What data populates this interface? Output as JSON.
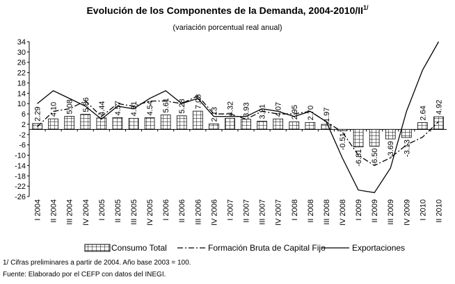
{
  "chart_data": {
    "type": "bar-line",
    "title": "Evolución de los Componentes de la Demanda, 2004-2010/II",
    "title_sup": "1/",
    "subtitle": "(variación porcentual real anual)",
    "categories": [
      "I 2004",
      "II 2004",
      "III 2004",
      "IV 2004",
      "I 2005",
      "II 2005",
      "III 2005",
      "IV 2005",
      "I 2006",
      "II 2006",
      "III 2006",
      "IV 2006",
      "I 2007",
      "II 2007",
      "III 2007",
      "IV 2007",
      "I 2008",
      "II 2008",
      "III 2008",
      "IV 2008",
      "I 2009",
      "II 2009",
      "III 2009",
      "IV 2009",
      "I 2010",
      "II 2010"
    ],
    "series": [
      {
        "name": "Consumo Total",
        "type": "bar",
        "color": "#000000",
        "values": [
          2.29,
          4.1,
          5.08,
          5.86,
          4.44,
          4.57,
          4.31,
          4.54,
          5.61,
          5.28,
          7.08,
          2.13,
          4.32,
          3.93,
          3.21,
          4.07,
          2.95,
          2.7,
          1.97,
          -0.51,
          -6.81,
          -6.5,
          -3.69,
          -3.13,
          2.64,
          4.92
        ],
        "value_labels": [
          "2.29",
          "4.10",
          "5.08",
          "5.86",
          "4.44",
          "4.57",
          "4.31",
          "4.54",
          "5.61",
          "5.28",
          "7.08",
          "2.13",
          "4.32",
          "3.93",
          "3.21",
          "4.07",
          "2.95",
          "2.70",
          "1.97",
          "-0.51",
          "-6.81",
          "-6.50",
          "-3.69",
          "-3.13",
          "2.64",
          "4.92"
        ]
      },
      {
        "name": "Formación Bruta de Capital Fijo",
        "type": "line",
        "dash": "dashdot",
        "color": "#000000",
        "values": [
          1,
          7,
          8,
          11,
          5,
          10,
          9,
          11,
          11,
          10,
          13,
          6,
          6,
          4,
          7,
          6,
          6,
          7,
          3,
          -1,
          -10,
          -14,
          -11,
          -6,
          -3,
          3
        ]
      },
      {
        "name": "Exportaciones",
        "type": "line",
        "color": "#000000",
        "values": [
          10,
          15,
          12,
          9,
          4,
          9,
          8,
          12,
          15,
          10,
          12,
          5,
          5,
          5,
          8,
          7,
          5,
          7,
          3,
          -11,
          -23.5,
          -24.5,
          -15,
          7,
          23,
          34
        ]
      }
    ],
    "ylim": [
      -26,
      34
    ],
    "yticks": [
      34,
      30,
      26,
      22,
      18,
      14,
      10,
      6,
      2,
      -2,
      -6,
      -10,
      -14,
      -18,
      -22,
      -26
    ],
    "notes": [
      "1/ Cifras preliminares a partir de 2004. Año base 2003 = 100.",
      "Fuente: Elaborado por el CEFP con datos del INEGI."
    ]
  }
}
